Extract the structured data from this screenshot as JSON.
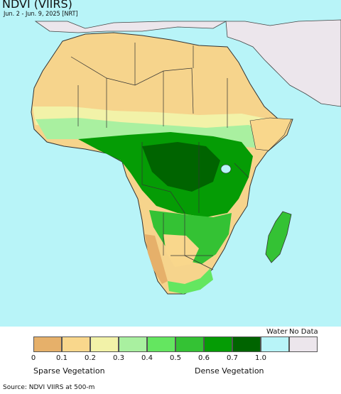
{
  "title": "NDVI (VIIRS)",
  "subtitle": "Jun. 2 - Jun. 9, 2025 [NRT]",
  "legend": {
    "water_label": "Water",
    "nodata_label": "No Data",
    "ticks": [
      "0",
      "0.1",
      "0.2",
      "0.3",
      "0.4",
      "0.5",
      "0.6",
      "0.7",
      "1.0"
    ],
    "swatch_colors": [
      "#e6b06a",
      "#f9d78c",
      "#f2f2a8",
      "#a9f0a0",
      "#64e660",
      "#34c234",
      "#059c05",
      "#006400",
      "#b8f4f8",
      "#ece6ec"
    ],
    "low_label": "Sparse Vegetation",
    "high_label": "Dense Vegetation"
  },
  "source": "Source: NDVI VIIRS at 500-m",
  "colors": {
    "ocean": "#b8f4f8",
    "no_data_land": "#ece6ec",
    "desert": "#f6d48c",
    "border": "#333333"
  }
}
